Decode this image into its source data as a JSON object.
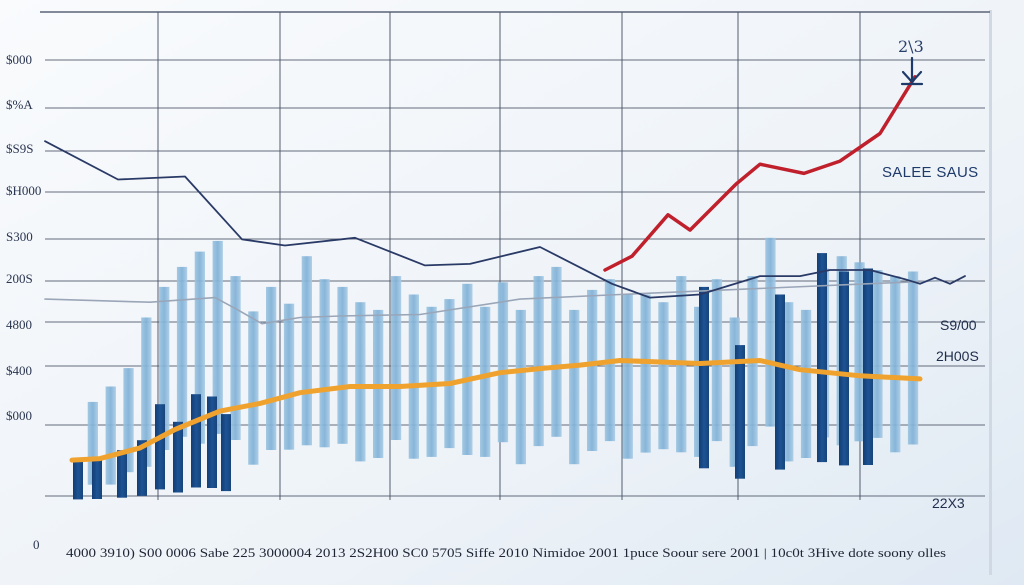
{
  "chart_data": {
    "type": "bar",
    "title": "",
    "legend": [
      "SALEE SAUS"
    ],
    "legend_position": "top-right",
    "annotation": "2\\3",
    "y_tick_labels": [
      "$000",
      "$%A",
      "$S9S",
      "$H000",
      "S300",
      "200S",
      "4800",
      "$400",
      "$000"
    ],
    "x_axis_text": "4000 3910) S00 0006 Sabe 225 3000004 2013 2S2H00 SC0 5705 Siffe 2010 Nimidoe 2001 1puce Soour sere 2001 | 10c0t 3Hive dote soony olles",
    "y_origin_label": "0",
    "right_labels": [
      "S9/00",
      "2H00S",
      "22X3"
    ],
    "ylim": [
      0,
      600
    ],
    "grid": true,
    "series": [
      {
        "name": "Dark bars",
        "color": "#1b4a82",
        "values": [
          32,
          35,
          45,
          58,
          105,
          82,
          118,
          115,
          92,
          258,
          182,
          248,
          302,
          278,
          282
        ]
      },
      {
        "name": "Light bars",
        "color": "#8fbcdc",
        "values": [
          128,
          148,
          172,
          238,
          278,
          304,
          324,
          338,
          292,
          246,
          278,
          256,
          318,
          288,
          278,
          258,
          248,
          292,
          268,
          252,
          262,
          282,
          252,
          284,
          248,
          292,
          304,
          248,
          274,
          288,
          268,
          268,
          258,
          292,
          252,
          288,
          238,
          292,
          342,
          258,
          248,
          302,
          318,
          310,
          300,
          292,
          298
        ]
      },
      {
        "name": "Red line",
        "color": "#c0202c",
        "values": [
          300,
          318,
          372,
          352,
          412,
          438,
          426,
          442,
          478,
          552
        ]
      },
      {
        "name": "Orange line",
        "color": "#f0a22e",
        "values": [
          52,
          54,
          68,
          92,
          116,
          126,
          140,
          148,
          148,
          152,
          166,
          172,
          176,
          182,
          180,
          178,
          182,
          170,
          162,
          158
        ]
      },
      {
        "name": "Navy line",
        "color": "#2a3a66",
        "values": [
          468,
          418,
          422,
          340,
          332,
          342,
          306,
          308,
          330,
          282,
          264,
          268,
          292,
          292,
          300,
          300,
          288,
          282,
          290,
          282,
          292
        ]
      },
      {
        "name": "Grey line",
        "color": "#9aa6b8",
        "values": [
          262,
          258,
          264,
          250,
          230,
          238,
          240,
          242,
          262,
          268,
          286
        ]
      }
    ]
  }
}
